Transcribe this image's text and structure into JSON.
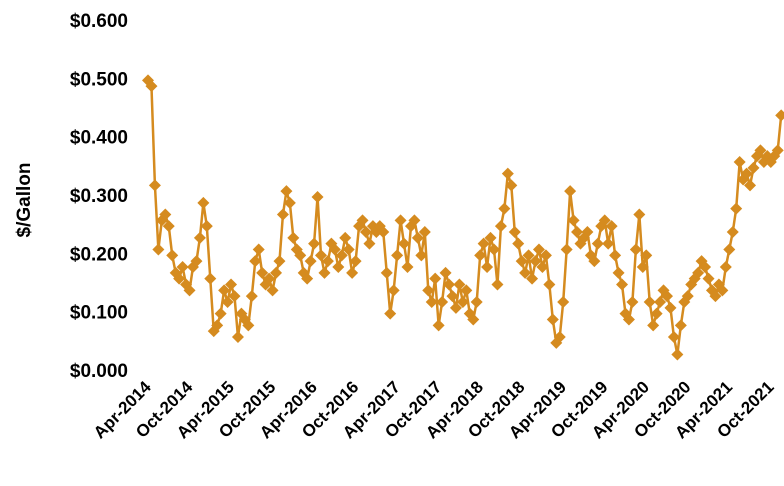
{
  "chart_data": {
    "type": "line",
    "y_label": "$/Gallon",
    "categories": [
      "Apr-2014",
      null,
      null,
      null,
      null,
      null,
      null,
      null,
      null,
      null,
      null,
      null,
      "Oct-2014",
      null,
      null,
      null,
      null,
      null,
      null,
      null,
      null,
      null,
      null,
      null,
      "Apr-2015",
      null,
      null,
      null,
      null,
      null,
      null,
      null,
      null,
      null,
      null,
      null,
      "Oct-2015",
      null,
      null,
      null,
      null,
      null,
      null,
      null,
      null,
      null,
      null,
      null,
      "Apr-2016",
      null,
      null,
      null,
      null,
      null,
      null,
      null,
      null,
      null,
      null,
      null,
      "Oct-2016",
      null,
      null,
      null,
      null,
      null,
      null,
      null,
      null,
      null,
      null,
      null,
      "Apr-2017",
      null,
      null,
      null,
      null,
      null,
      null,
      null,
      null,
      null,
      null,
      null,
      "Oct-2017",
      null,
      null,
      null,
      null,
      null,
      null,
      null,
      null,
      null,
      null,
      null,
      "Apr-2018",
      null,
      null,
      null,
      null,
      null,
      null,
      null,
      null,
      null,
      null,
      null,
      "Oct-2018",
      null,
      null,
      null,
      null,
      null,
      null,
      null,
      null,
      null,
      null,
      null,
      "Apr-2019",
      null,
      null,
      null,
      null,
      null,
      null,
      null,
      null,
      null,
      null,
      null,
      "Oct-2019",
      null,
      null,
      null,
      null,
      null,
      null,
      null,
      null,
      null,
      null,
      null,
      "Apr-2020",
      null,
      null,
      null,
      null,
      null,
      null,
      null,
      null,
      null,
      null,
      null,
      "Oct-2020",
      null,
      null,
      null,
      null,
      null,
      null,
      null,
      null,
      null,
      null,
      null,
      "Apr-2021",
      null,
      null,
      null,
      null,
      null,
      null,
      null,
      null,
      null,
      null,
      null,
      "Oct-2021",
      null,
      null,
      null
    ],
    "series": [
      {
        "name": "$/Gallon",
        "color": "#d58b1f",
        "values": [
          0.5,
          0.49,
          0.32,
          0.21,
          0.26,
          0.27,
          0.25,
          0.2,
          0.17,
          0.16,
          0.18,
          0.15,
          0.14,
          0.18,
          0.19,
          0.23,
          0.29,
          0.25,
          0.16,
          0.07,
          0.08,
          0.1,
          0.14,
          0.12,
          0.15,
          0.13,
          0.06,
          0.1,
          0.09,
          0.08,
          0.13,
          0.19,
          0.21,
          0.17,
          0.15,
          0.16,
          0.14,
          0.17,
          0.19,
          0.27,
          0.31,
          0.29,
          0.23,
          0.21,
          0.2,
          0.17,
          0.16,
          0.19,
          0.22,
          0.3,
          0.2,
          0.17,
          0.19,
          0.22,
          0.21,
          0.18,
          0.2,
          0.23,
          0.21,
          0.17,
          0.19,
          0.25,
          0.26,
          0.24,
          0.22,
          0.25,
          0.24,
          0.25,
          0.24,
          0.17,
          0.1,
          0.14,
          0.2,
          0.26,
          0.22,
          0.18,
          0.25,
          0.26,
          0.23,
          0.2,
          0.24,
          0.14,
          0.12,
          0.16,
          0.08,
          0.12,
          0.17,
          0.15,
          0.13,
          0.11,
          0.15,
          0.12,
          0.14,
          0.1,
          0.09,
          0.12,
          0.2,
          0.22,
          0.18,
          0.23,
          0.21,
          0.15,
          0.25,
          0.28,
          0.34,
          0.32,
          0.24,
          0.22,
          0.19,
          0.17,
          0.2,
          0.16,
          0.19,
          0.21,
          0.18,
          0.2,
          0.15,
          0.09,
          0.05,
          0.06,
          0.12,
          0.21,
          0.31,
          0.26,
          0.24,
          0.22,
          0.23,
          0.24,
          0.2,
          0.19,
          0.22,
          0.25,
          0.26,
          0.22,
          0.25,
          0.2,
          0.17,
          0.15,
          0.1,
          0.09,
          0.12,
          0.21,
          0.27,
          0.18,
          0.2,
          0.12,
          0.08,
          0.1,
          0.12,
          0.14,
          0.13,
          0.11,
          0.06,
          0.03,
          0.08,
          0.12,
          0.13,
          0.15,
          0.16,
          0.17,
          0.19,
          0.18,
          0.16,
          0.14,
          0.13,
          0.15,
          0.14,
          0.18,
          0.21,
          0.24,
          0.28,
          0.36,
          0.33,
          0.34,
          0.32,
          0.35,
          0.37,
          0.38,
          0.36,
          0.37,
          0.36,
          0.37,
          0.38,
          0.44
        ]
      }
    ],
    "ylim": [
      0,
      0.6
    ],
    "yticks": [
      {
        "value": 0,
        "label": "$0.000"
      },
      {
        "value": 0.1,
        "label": "$0.100"
      },
      {
        "value": 0.2,
        "label": "$0.200"
      },
      {
        "value": 0.3,
        "label": "$0.300"
      },
      {
        "value": 0.4,
        "label": "$0.400"
      },
      {
        "value": 0.5,
        "label": "$0.500"
      },
      {
        "value": 0.6,
        "label": "$0.600"
      }
    ],
    "grid": false
  }
}
